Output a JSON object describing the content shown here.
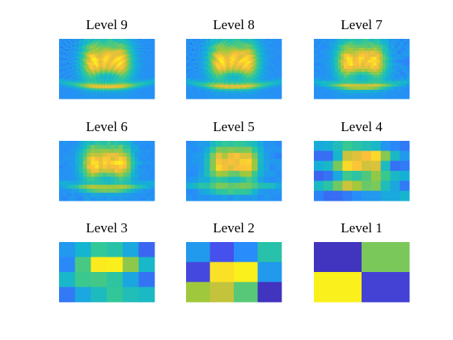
{
  "chart_data": {
    "type": "heatmap",
    "colormap": "parula",
    "panels": [
      {
        "title": "Level 9",
        "grid": [
          64,
          40
        ]
      },
      {
        "title": "Level 8",
        "grid": [
          48,
          30
        ]
      },
      {
        "title": "Level 7",
        "grid": [
          32,
          20
        ]
      },
      {
        "title": "Level 6",
        "grid": [
          24,
          15
        ]
      },
      {
        "title": "Level 5",
        "grid": [
          16,
          10
        ]
      },
      {
        "title": "Level 4",
        "grid": [
          10,
          6
        ]
      },
      {
        "title": "Level 3",
        "grid": [
          6,
          4
        ]
      },
      {
        "title": "Level 2",
        "grid": [
          4,
          3
        ]
      },
      {
        "title": "Level 1",
        "grid": [
          2,
          2
        ]
      }
    ],
    "level2_values": [
      [
        0.35,
        0.15,
        0.3,
        0.55
      ],
      [
        0.12,
        0.95,
        0.98,
        0.35
      ],
      [
        0.75,
        0.8,
        0.65,
        0.05
      ]
    ],
    "level1_values": [
      [
        0.05,
        0.7
      ],
      [
        0.98,
        0.1
      ]
    ]
  }
}
